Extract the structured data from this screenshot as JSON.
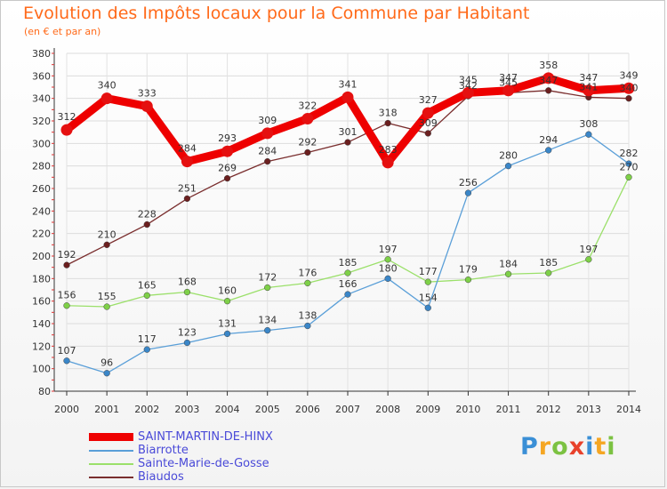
{
  "header": {
    "title": "Evolution des Impôts locaux pour la Commune par Habitant",
    "subtitle": "(en € et par an)"
  },
  "brand": {
    "letters": [
      {
        "ch": "P",
        "color": "#3a8fd6"
      },
      {
        "ch": "r",
        "color": "#f5a623"
      },
      {
        "ch": "o",
        "color": "#7cc242"
      },
      {
        "ch": "x",
        "color": "#e8412b"
      },
      {
        "ch": "i",
        "color": "#3a8fd6"
      },
      {
        "ch": "t",
        "color": "#f5a623"
      },
      {
        "ch": "i",
        "color": "#7cc242"
      }
    ]
  },
  "chart_data": {
    "type": "line",
    "title": "Evolution des Impôts locaux pour la Commune par Habitant",
    "subtitle": "(en € et par an)",
    "x": [
      "2000",
      "2001",
      "2002",
      "2003",
      "2004",
      "2005",
      "2006",
      "2007",
      "2008",
      "2009",
      "2010",
      "2011",
      "2012",
      "2013",
      "2014"
    ],
    "ylim": [
      80,
      380
    ],
    "yticks": [
      80,
      100,
      120,
      140,
      160,
      180,
      200,
      220,
      240,
      260,
      280,
      300,
      320,
      340,
      360,
      380
    ],
    "grid": true,
    "legend_position": "bottom-left",
    "series": [
      {
        "name": "SAINT-MARTIN-DE-HINX",
        "color": "#ee0000",
        "marker": "#e51010",
        "width": 9,
        "dot": 6.5,
        "values": [
          312,
          340,
          333,
          284,
          293,
          309,
          322,
          341,
          283,
          327,
          345,
          347,
          358,
          347,
          349
        ]
      },
      {
        "name": "Biarrotte",
        "color": "#5a9fd8",
        "marker": "#3a86c8",
        "width": 1.3,
        "dot": 3.4,
        "values": [
          107,
          96,
          117,
          123,
          131,
          134,
          138,
          166,
          180,
          154,
          256,
          280,
          294,
          308,
          282
        ]
      },
      {
        "name": "Sainte-Marie-de-Gosse",
        "color": "#9be06a",
        "marker": "#7ed048",
        "width": 1.3,
        "dot": 3.4,
        "values": [
          156,
          155,
          165,
          168,
          160,
          172,
          176,
          185,
          197,
          177,
          179,
          184,
          185,
          197,
          270
        ]
      },
      {
        "name": "Biaudos",
        "color": "#7a2e2e",
        "marker": "#6b1f1f",
        "width": 1.3,
        "dot": 3.4,
        "values": [
          192,
          210,
          228,
          251,
          269,
          284,
          292,
          301,
          318,
          309,
          342,
          345,
          347,
          341,
          340
        ]
      }
    ]
  }
}
